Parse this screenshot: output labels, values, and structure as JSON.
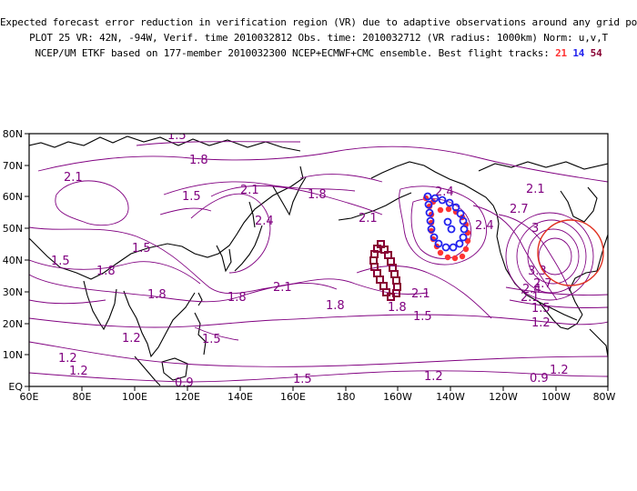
{
  "header": {
    "line1": "Expected forecast error reduction in verification region (VR) due to adaptive observations around any grid point.",
    "line2": "PLOT 25 VR: 42N, -94W, Verif. time 2010032812 Obs. time: 2010032712 (VR radius: 1000km) Norm: u,v,T",
    "line3_prefix": "NCEP/UM ETKF based on 177-member 2010032300 NCEP+ECMWF+CMC ensemble. Best flight tracks:",
    "track_labels": [
      "21",
      "14",
      "54"
    ]
  },
  "map": {
    "lon_range": [
      60,
      280
    ],
    "lat_range": [
      0,
      80
    ],
    "lon_ticks": [
      "60E",
      "80E",
      "100E",
      "120E",
      "140E",
      "160E",
      "180",
      "160W",
      "140W",
      "120W",
      "100W",
      "80W"
    ],
    "lat_ticks": [
      "EQ",
      "10N",
      "20N",
      "30N",
      "40N",
      "50N",
      "60N",
      "70N",
      "80N"
    ],
    "contour_labels": [
      "1.5",
      "1.8",
      "2.1",
      "1.5",
      "1.5",
      "1.8",
      "2.1",
      "2.4",
      "1.8",
      "2.1",
      "2.4",
      "2.1",
      "2.4",
      "2.7",
      "3",
      "1.5",
      "1.8",
      "1.8",
      "1.8",
      "2.1",
      "1.2",
      "1.5",
      "1.2",
      "1.2",
      "0.9",
      "1.5",
      "1.2",
      "1.5",
      "2.1",
      "1.8",
      "3.3",
      "2.7",
      "2.4",
      "2.1",
      "1.5",
      "1.2",
      "1.2",
      "0.9"
    ],
    "verification_region": {
      "center_lat": 42,
      "center_lon": -94,
      "radius_km": 1000
    },
    "colors": {
      "contour": "#800080",
      "track21": "#ff3333",
      "track14": "#2222ee",
      "track54": "#880033",
      "vr_circle": "#e03020"
    }
  }
}
